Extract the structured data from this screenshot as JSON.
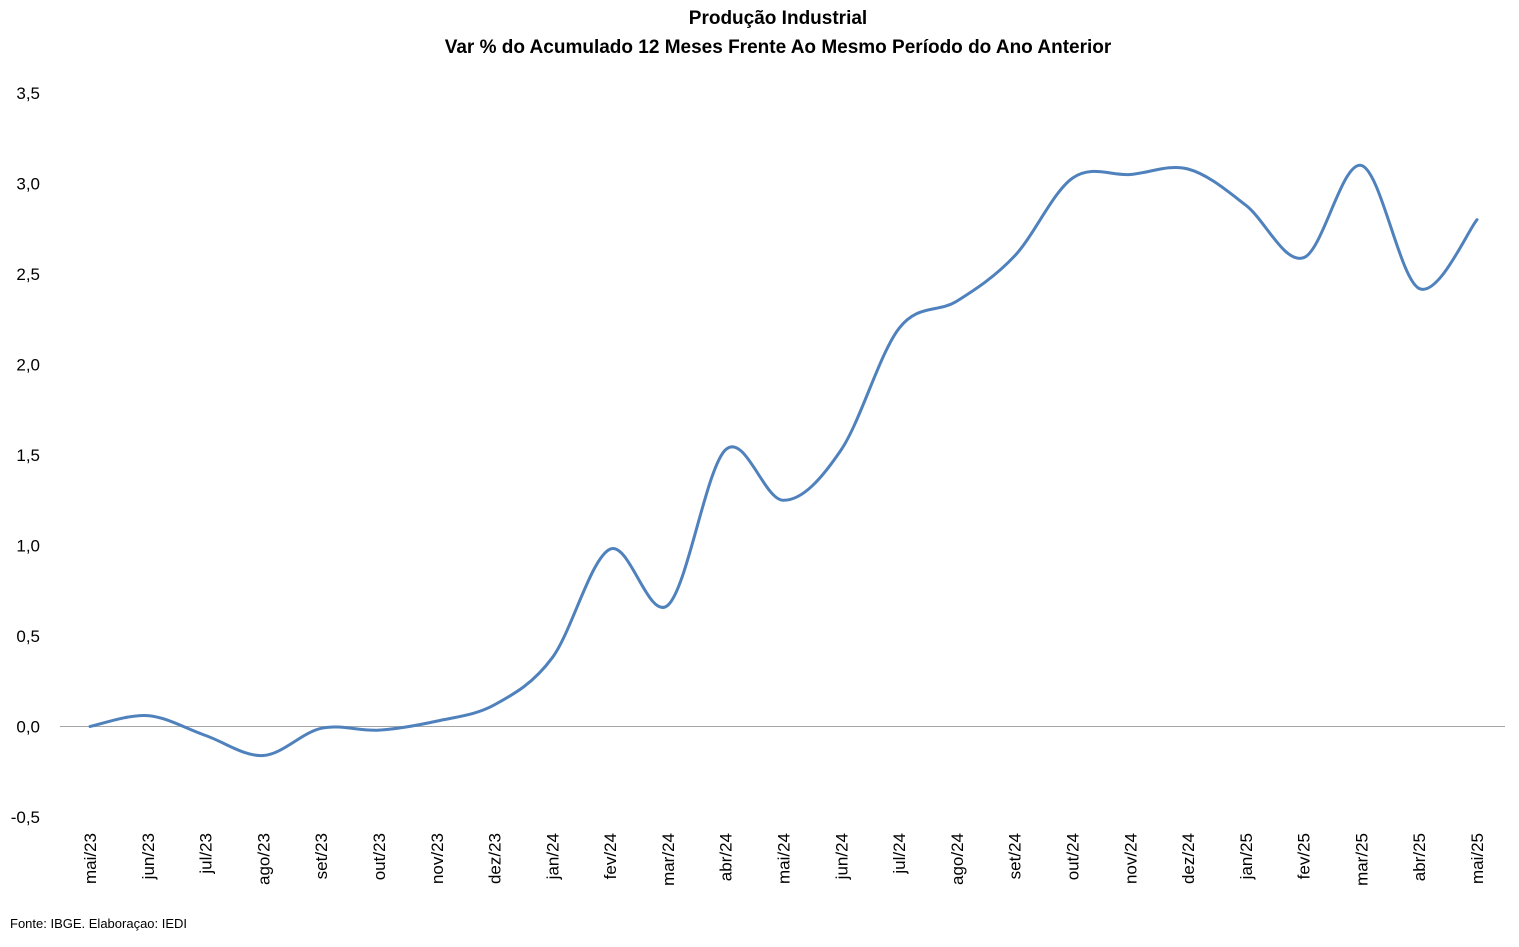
{
  "chart_data": {
    "type": "line",
    "title": "Produção Industrial",
    "subtitle": "Var % do Acumulado 12 Meses Frente Ao Mesmo Período do Ano Anterior",
    "xlabel": "",
    "ylabel": "",
    "categories": [
      "mai/23",
      "jun/23",
      "jul/23",
      "ago/23",
      "set/23",
      "out/23",
      "nov/23",
      "dez/23",
      "jan/24",
      "fev/24",
      "mar/24",
      "abr/24",
      "mai/24",
      "jun/24",
      "jul/24",
      "ago/24",
      "set/24",
      "out/24",
      "nov/24",
      "dez/24",
      "jan/25",
      "fev/25",
      "mar/25",
      "abr/25",
      "mai/25"
    ],
    "series": [
      {
        "values": [
          0.0,
          0.06,
          -0.05,
          -0.16,
          -0.01,
          -0.02,
          0.03,
          0.12,
          0.38,
          0.98,
          0.67,
          1.53,
          1.25,
          1.53,
          2.2,
          2.35,
          2.6,
          3.03,
          3.05,
          3.08,
          2.88,
          2.59,
          3.1,
          2.42,
          2.8
        ]
      }
    ],
    "y_ticks": [
      "3,5",
      "3,0",
      "2,5",
      "2,0",
      "1,5",
      "1,0",
      "0,5",
      "0,0",
      "-0,5"
    ],
    "ylim": [
      -0.5,
      3.5
    ],
    "grid": false,
    "line_color": "#4f81bd",
    "axis_color": "#a6a6a6"
  },
  "source": "Fonte: IBGE. Elaboraçao: IEDI"
}
